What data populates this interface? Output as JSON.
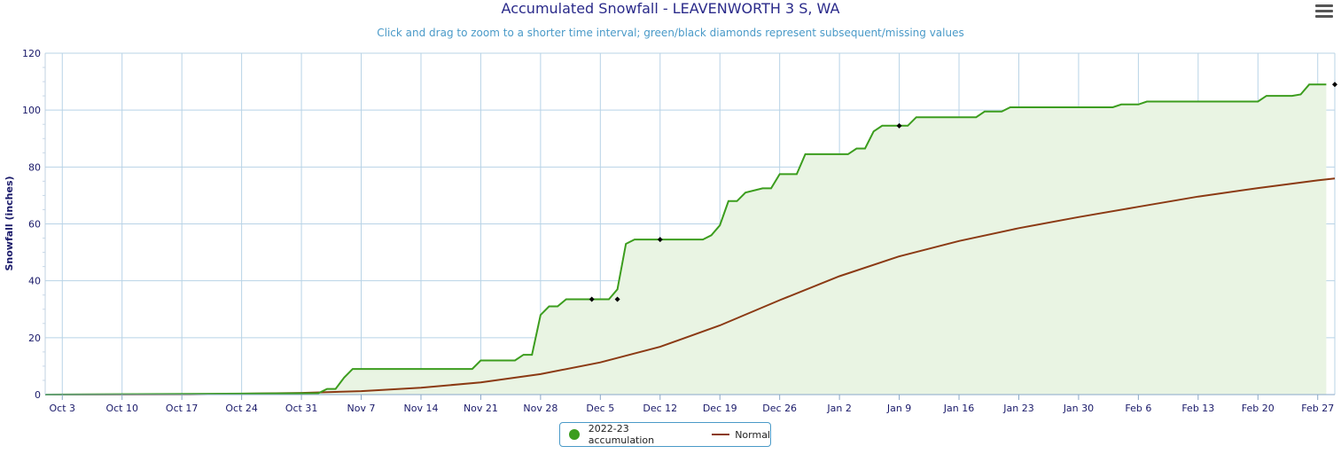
{
  "header": {
    "title": "Accumulated Snowfall - LEAVENWORTH 3 S, WA",
    "subtitle": "Click and drag to zoom to a shorter time interval; green/black diamonds represent subsequent/missing values"
  },
  "colors": {
    "accumulation_line": "#3c9d1e",
    "accumulation_fill": "#e9f4e3",
    "normal_line": "#8b3a14",
    "grid": "#b8d3e6",
    "axis_text": "#1a1a6a",
    "legend_border": "#4a9ac8"
  },
  "legend": {
    "accumulation_label": "2022-23 accumulation",
    "normal_label": "Normal"
  },
  "chart_data": {
    "type": "area",
    "title": "Accumulated Snowfall - LEAVENWORTH 3 S, WA",
    "subtitle": "Click and drag to zoom to a shorter time interval; green/black diamonds represent subsequent/missing values",
    "xlabel": "",
    "ylabel": "Snowfall (inches)",
    "x_start": "2022-10-01",
    "x_end": "2023-02-28",
    "ylim": [
      0,
      120
    ],
    "yticks": [
      0,
      20,
      40,
      60,
      80,
      100,
      120
    ],
    "x_tick_labels": [
      "Oct 3",
      "Oct 10",
      "Oct 17",
      "Oct 24",
      "Oct 31",
      "Nov 7",
      "Nov 14",
      "Nov 21",
      "Nov 28",
      "Dec 5",
      "Dec 12",
      "Dec 19",
      "Dec 26",
      "Jan 2",
      "Jan 9",
      "Jan 16",
      "Jan 23",
      "Jan 30",
      "Feb 6",
      "Feb 13",
      "Feb 20",
      "Feb 27"
    ],
    "x_tick_dates": [
      "2022-10-03",
      "2022-10-10",
      "2022-10-17",
      "2022-10-24",
      "2022-10-31",
      "2022-11-07",
      "2022-11-14",
      "2022-11-21",
      "2022-11-28",
      "2022-12-05",
      "2022-12-12",
      "2022-12-19",
      "2022-12-26",
      "2023-01-02",
      "2023-01-09",
      "2023-01-16",
      "2023-01-23",
      "2023-01-30",
      "2023-02-06",
      "2023-02-13",
      "2023-02-20",
      "2023-02-27"
    ],
    "grid": true,
    "legend_position": "bottom-center",
    "series": [
      {
        "name": "2022-23 accumulation",
        "points": [
          [
            "2022-10-01",
            0
          ],
          [
            "2022-11-02",
            0.5
          ],
          [
            "2022-11-03",
            2
          ],
          [
            "2022-11-04",
            2
          ],
          [
            "2022-11-05",
            6
          ],
          [
            "2022-11-06",
            9
          ],
          [
            "2022-11-20",
            9
          ],
          [
            "2022-11-21",
            12
          ],
          [
            "2022-11-25",
            12
          ],
          [
            "2022-11-26",
            14
          ],
          [
            "2022-11-27",
            14
          ],
          [
            "2022-11-28",
            28
          ],
          [
            "2022-11-29",
            31
          ],
          [
            "2022-11-30",
            31
          ],
          [
            "2022-12-01",
            33.5
          ],
          [
            "2022-12-06",
            33.5
          ],
          [
            "2022-12-07",
            37
          ],
          [
            "2022-12-08",
            53
          ],
          [
            "2022-12-09",
            54.5
          ],
          [
            "2022-12-17",
            54.5
          ],
          [
            "2022-12-18",
            56
          ],
          [
            "2022-12-19",
            59.5
          ],
          [
            "2022-12-20",
            68
          ],
          [
            "2022-12-21",
            68
          ],
          [
            "2022-12-22",
            71
          ],
          [
            "2022-12-24",
            72.5
          ],
          [
            "2022-12-25",
            72.5
          ],
          [
            "2022-12-26",
            77.5
          ],
          [
            "2022-12-28",
            77.5
          ],
          [
            "2022-12-29",
            84.5
          ],
          [
            "2023-01-03",
            84.5
          ],
          [
            "2023-01-04",
            86.5
          ],
          [
            "2023-01-05",
            86.5
          ],
          [
            "2023-01-06",
            92.5
          ],
          [
            "2023-01-07",
            94.5
          ],
          [
            "2023-01-10",
            94.5
          ],
          [
            "2023-01-11",
            97.5
          ],
          [
            "2023-01-18",
            97.5
          ],
          [
            "2023-01-19",
            99.5
          ],
          [
            "2023-01-21",
            99.5
          ],
          [
            "2023-01-22",
            101
          ],
          [
            "2023-02-03",
            101
          ],
          [
            "2023-02-04",
            102
          ],
          [
            "2023-02-06",
            102
          ],
          [
            "2023-02-07",
            103
          ],
          [
            "2023-02-20",
            103
          ],
          [
            "2023-02-21",
            105
          ],
          [
            "2023-02-24",
            105
          ],
          [
            "2023-02-25",
            105.5
          ],
          [
            "2023-02-26",
            109
          ],
          [
            "2023-02-28",
            109
          ]
        ],
        "diamonds": [
          [
            "2022-12-04",
            33.5
          ],
          [
            "2022-12-07",
            33.5
          ],
          [
            "2022-12-12",
            54.5
          ],
          [
            "2023-01-09",
            94.5
          ],
          [
            "2023-03-01",
            109
          ]
        ]
      },
      {
        "name": "Normal",
        "points": [
          [
            "2022-10-01",
            0
          ],
          [
            "2022-10-18",
            0.1
          ],
          [
            "2022-10-24",
            0.3
          ],
          [
            "2022-10-31",
            0.6
          ],
          [
            "2022-11-07",
            1.2
          ],
          [
            "2022-11-14",
            2.4
          ],
          [
            "2022-11-21",
            4.3
          ],
          [
            "2022-11-28",
            7.2
          ],
          [
            "2022-12-05",
            11.3
          ],
          [
            "2022-12-12",
            16.8
          ],
          [
            "2022-12-19",
            24.3
          ],
          [
            "2022-12-26",
            33.2
          ],
          [
            "2023-01-02",
            41.6
          ],
          [
            "2023-01-09",
            48.6
          ],
          [
            "2023-01-16",
            54
          ],
          [
            "2023-01-23",
            58.5
          ],
          [
            "2023-01-30",
            62.4
          ],
          [
            "2023-02-06",
            66
          ],
          [
            "2023-02-13",
            69.6
          ],
          [
            "2023-02-20",
            72.6
          ],
          [
            "2023-02-27",
            75.3
          ],
          [
            "2023-03-01",
            76
          ]
        ]
      }
    ]
  }
}
